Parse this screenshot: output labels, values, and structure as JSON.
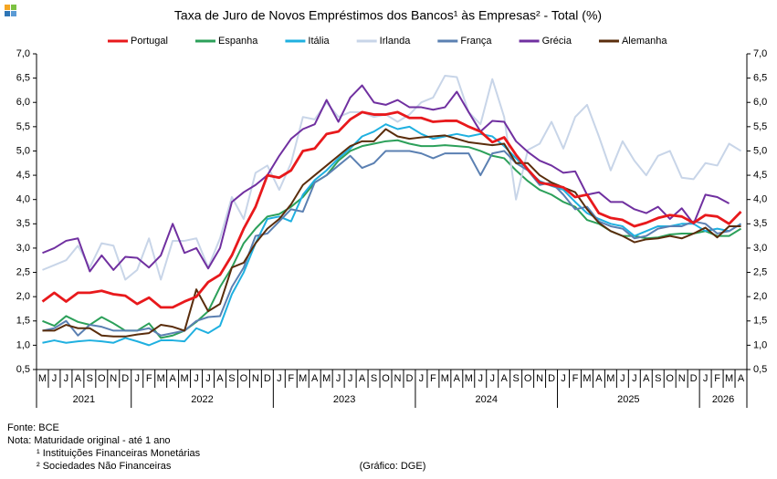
{
  "chart_data": {
    "type": "line",
    "title": "Taxa de Juro de Novos Empréstimos dos Bancos¹ às Empresas² - Total (%)",
    "categories": [
      "M",
      "J",
      "J",
      "A",
      "S",
      "O",
      "N",
      "D",
      "J",
      "F",
      "M",
      "A",
      "M",
      "J",
      "J",
      "A",
      "S",
      "O",
      "N",
      "D",
      "J",
      "F",
      "M",
      "A",
      "M",
      "J",
      "J",
      "A",
      "S",
      "O",
      "N",
      "D",
      "J",
      "F",
      "M",
      "A",
      "M",
      "J",
      "J",
      "A",
      "S",
      "O",
      "N",
      "D",
      "J",
      "F",
      "M",
      "A",
      "M",
      "J",
      "J",
      "A",
      "S",
      "O",
      "N",
      "D",
      "J",
      "F",
      "M",
      "A"
    ],
    "years": [
      "2021",
      "2022",
      "2023",
      "2024",
      "2025",
      "2026"
    ],
    "ylim": [
      0.5,
      7.0
    ],
    "yticks": [
      {
        "value": 0.5,
        "label": "0,5"
      },
      {
        "value": 1.0,
        "label": "1,0"
      },
      {
        "value": 1.5,
        "label": "1,5"
      },
      {
        "value": 2.0,
        "label": "2,0"
      },
      {
        "value": 2.5,
        "label": "2,5"
      },
      {
        "value": 3.0,
        "label": "3,0"
      },
      {
        "value": 3.5,
        "label": "3,5"
      },
      {
        "value": 4.0,
        "label": "4,0"
      },
      {
        "value": 4.5,
        "label": "4,5"
      },
      {
        "value": 5.0,
        "label": "5,0"
      },
      {
        "value": 5.5,
        "label": "5,5"
      },
      {
        "value": 6.0,
        "label": "6,0"
      },
      {
        "value": 6.5,
        "label": "6,5"
      },
      {
        "value": 7.0,
        "label": "7,0"
      }
    ],
    "grid": false,
    "legend": "top",
    "series": [
      {
        "name": "Portugal",
        "color": "#e8191c",
        "values": [
          1.9,
          2.08,
          1.9,
          2.08,
          2.08,
          2.12,
          2.05,
          2.02,
          1.85,
          1.98,
          1.78,
          1.78,
          1.9,
          2.0,
          2.3,
          2.45,
          2.85,
          3.4,
          3.85,
          4.5,
          4.45,
          4.6,
          5.0,
          5.05,
          5.35,
          5.4,
          5.65,
          5.8,
          5.75,
          5.75,
          5.8,
          5.68,
          5.68,
          5.6,
          5.62,
          5.62,
          5.5,
          5.4,
          5.18,
          5.28,
          4.92,
          4.62,
          4.35,
          4.3,
          4.25,
          4.05,
          4.1,
          3.72,
          3.62,
          3.58,
          3.45,
          3.52,
          3.62,
          3.68,
          3.65,
          3.52,
          3.68,
          3.65,
          3.5,
          3.75
        ]
      },
      {
        "name": "Espanha",
        "color": "#2ca05a",
        "values": [
          1.5,
          1.4,
          1.6,
          1.48,
          1.42,
          1.58,
          1.45,
          1.3,
          1.3,
          1.45,
          1.15,
          1.2,
          1.3,
          1.48,
          1.7,
          2.2,
          2.6,
          3.1,
          3.4,
          3.65,
          3.7,
          3.85,
          4.05,
          4.35,
          4.5,
          4.8,
          5.0,
          5.1,
          5.15,
          5.2,
          5.22,
          5.15,
          5.1,
          5.1,
          5.12,
          5.1,
          5.08,
          5.0,
          4.9,
          4.85,
          4.6,
          4.38,
          4.2,
          4.1,
          3.95,
          3.85,
          3.58,
          3.5,
          3.35,
          3.25,
          3.25,
          3.2,
          3.22,
          3.28,
          3.3,
          3.3,
          3.35,
          3.25,
          3.25,
          3.4
        ]
      },
      {
        "name": "Itália",
        "color": "#1fb0e0",
        "values": [
          1.05,
          1.1,
          1.05,
          1.08,
          1.1,
          1.08,
          1.05,
          1.15,
          1.08,
          1.0,
          1.1,
          1.1,
          1.08,
          1.35,
          1.25,
          1.4,
          2.05,
          2.5,
          3.1,
          3.6,
          3.65,
          3.55,
          4.1,
          4.4,
          4.6,
          4.85,
          5.05,
          5.3,
          5.4,
          5.55,
          5.45,
          5.5,
          5.35,
          5.25,
          5.3,
          5.35,
          5.3,
          5.35,
          5.3,
          5.1,
          4.85,
          4.6,
          4.38,
          4.28,
          4.2,
          3.95,
          3.72,
          3.6,
          3.5,
          3.45,
          3.25,
          3.35,
          3.45,
          3.45,
          3.5,
          3.5,
          3.35,
          3.4,
          3.35,
          3.5
        ]
      },
      {
        "name": "Irlanda",
        "color": "#c8d5e8",
        "values": [
          2.55,
          2.65,
          2.75,
          3.05,
          2.6,
          3.1,
          3.05,
          2.35,
          2.55,
          3.2,
          2.35,
          3.15,
          3.15,
          3.2,
          2.6,
          3.2,
          4.05,
          3.6,
          4.55,
          4.7,
          4.2,
          4.75,
          5.7,
          5.65,
          6.0,
          5.7,
          5.8,
          5.8,
          5.7,
          5.75,
          5.6,
          5.75,
          6.0,
          6.1,
          6.55,
          6.52,
          5.8,
          5.55,
          6.48,
          5.7,
          4.0,
          5.02,
          5.15,
          5.6,
          5.05,
          5.7,
          5.95,
          5.3,
          4.6,
          5.2,
          4.8,
          4.5,
          4.9,
          5.0,
          4.45,
          4.42,
          4.75,
          4.7,
          5.15,
          5.0
        ]
      },
      {
        "name": "França",
        "color": "#5b80b2",
        "values": [
          1.3,
          1.35,
          1.5,
          1.2,
          1.42,
          1.38,
          1.3,
          1.3,
          1.3,
          1.35,
          1.2,
          1.25,
          1.3,
          1.5,
          1.58,
          1.6,
          2.2,
          2.6,
          3.25,
          3.3,
          3.55,
          3.8,
          3.75,
          4.35,
          4.5,
          4.7,
          4.9,
          4.65,
          4.75,
          5.0,
          5.0,
          5.0,
          4.95,
          4.85,
          4.95,
          4.95,
          4.95,
          4.5,
          4.95,
          5.0,
          4.75,
          4.6,
          4.3,
          4.35,
          4.1,
          3.8,
          3.85,
          3.55,
          3.45,
          3.4,
          3.2,
          3.25,
          3.4,
          3.45,
          3.45,
          3.55,
          3.5,
          3.3,
          3.35,
          3.5
        ]
      },
      {
        "name": "Grécia",
        "color": "#7030a0",
        "values": [
          2.9,
          3.0,
          3.15,
          3.2,
          2.52,
          2.85,
          2.55,
          2.82,
          2.8,
          2.6,
          2.85,
          3.5,
          2.9,
          3.0,
          2.58,
          3.0,
          3.95,
          4.15,
          4.3,
          4.5,
          4.9,
          5.25,
          5.45,
          5.55,
          6.05,
          5.6,
          6.1,
          6.35,
          6.0,
          5.95,
          6.05,
          5.9,
          5.9,
          5.85,
          5.9,
          6.22,
          5.8,
          5.4,
          5.62,
          5.6,
          5.2,
          4.98,
          4.8,
          4.7,
          4.55,
          4.58,
          4.1,
          4.15,
          3.95,
          3.95,
          3.8,
          3.72,
          3.85,
          3.6,
          3.82,
          3.5,
          4.1,
          4.05,
          3.92,
          null
        ]
      },
      {
        "name": "Alemanha",
        "color": "#5a2d0c",
        "values": [
          1.3,
          1.3,
          1.42,
          1.35,
          1.35,
          1.2,
          1.18,
          1.18,
          1.22,
          1.25,
          1.42,
          1.38,
          1.3,
          2.15,
          1.7,
          1.85,
          2.6,
          2.7,
          3.1,
          3.4,
          3.6,
          3.9,
          4.3,
          4.5,
          4.7,
          4.9,
          5.1,
          5.2,
          5.2,
          5.45,
          5.3,
          5.25,
          5.28,
          5.3,
          5.32,
          5.25,
          5.18,
          5.15,
          5.12,
          5.15,
          4.75,
          4.75,
          4.5,
          4.35,
          4.25,
          4.15,
          3.8,
          3.52,
          3.35,
          3.25,
          3.12,
          3.18,
          3.2,
          3.25,
          3.2,
          3.3,
          3.42,
          3.22,
          3.45,
          3.45
        ]
      }
    ]
  },
  "notes": {
    "source": "Fonte: BCE",
    "note": "Nota: Maturidade original - até 1 ano",
    "footnote1": "¹ Instituições Financeiras Monetárias",
    "footnote2": "² Sociedades Não Financeiras",
    "credit": "(Gráfico: DGE)"
  }
}
